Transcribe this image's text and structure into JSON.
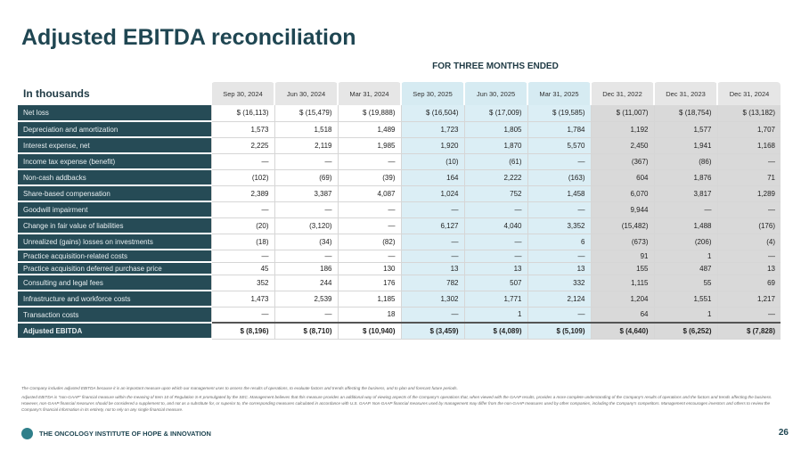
{
  "title": "Adjusted EBITDA reconciliation",
  "period_label": "FOR THREE MONTHS ENDED",
  "units_label": "In thousands",
  "columns": [
    "Sep 30, 2024",
    "Jun 30, 2024",
    "Mar 31, 2024",
    "Sep 30, 2025",
    "Jun 30, 2025",
    "Mar 31, 2025",
    "Dec 31, 2022",
    "Dec 31, 2023",
    "Dec 31, 2024"
  ],
  "rows": [
    {
      "label": "Net loss",
      "values": [
        "$ (16,113)",
        "$ (15,479)",
        "$ (19,888)",
        "$ (16,504)",
        "$ (17,009)",
        "$ (19,585)",
        "$ (11,007)",
        "$ (18,754)",
        "$ (13,182)"
      ]
    },
    {
      "label": "Depreciation and amortization",
      "values": [
        "1,573",
        "1,518",
        "1,489",
        "1,723",
        "1,805",
        "1,784",
        "1,192",
        "1,577",
        "1,707"
      ]
    },
    {
      "label": "Interest expense, net",
      "values": [
        "2,225",
        "2,119",
        "1,985",
        "1,920",
        "1,870",
        "5,570",
        "2,450",
        "1,941",
        "1,168"
      ]
    },
    {
      "label": "Income tax expense (benefit)",
      "values": [
        "—",
        "—",
        "—",
        "(10)",
        "(61)",
        "—",
        "(367)",
        "(86)",
        "—"
      ]
    },
    {
      "label": "Non-cash addbacks",
      "values": [
        "(102)",
        "(69)",
        "(39)",
        "164",
        "2,222",
        "(163)",
        "604",
        "1,876",
        "71"
      ]
    },
    {
      "label": "Share-based compensation",
      "values": [
        "2,389",
        "3,387",
        "4,087",
        "1,024",
        "752",
        "1,458",
        "6,070",
        "3,817",
        "1,289"
      ]
    },
    {
      "label": "Goodwill impairment",
      "values": [
        "—",
        "—",
        "—",
        "—",
        "—",
        "—",
        "9,944",
        "—",
        "—"
      ]
    },
    {
      "label": "Change in fair value of liabilities",
      "values": [
        "(20)",
        "(3,120)",
        "—",
        "6,127",
        "4,040",
        "3,352",
        "(15,482)",
        "1,488",
        "(176)"
      ]
    },
    {
      "label": "Unrealized (gains) losses on investments",
      "values": [
        "(18)",
        "(34)",
        "(82)",
        "—",
        "—",
        "6",
        "(673)",
        "(206)",
        "(4)"
      ]
    },
    {
      "label": "Practice acquisition-related costs",
      "values": [
        "—",
        "—",
        "—",
        "—",
        "—",
        "—",
        "91",
        "1",
        "—"
      ]
    },
    {
      "label": "Practice acquisition deferred purchase price",
      "values": [
        "45",
        "186",
        "130",
        "13",
        "13",
        "13",
        "155",
        "487",
        "13"
      ]
    },
    {
      "label": "Consulting and legal fees",
      "values": [
        "352",
        "244",
        "176",
        "782",
        "507",
        "332",
        "1,115",
        "55",
        "69"
      ]
    },
    {
      "label": "Infrastructure and workforce costs",
      "values": [
        "1,473",
        "2,539",
        "1,185",
        "1,302",
        "1,771",
        "2,124",
        "1,204",
        "1,551",
        "1,217"
      ]
    },
    {
      "label": "Transaction costs",
      "values": [
        "—",
        "—",
        "18",
        "—",
        "1",
        "—",
        "64",
        "1",
        "—"
      ]
    },
    {
      "label": "Adjusted EBITDA",
      "values": [
        "$ (8,196)",
        "$ (8,710)",
        "$ (10,940)",
        "$ (3,459)",
        "$ (4,089)",
        "$ (5,109)",
        "$ (4,640)",
        "$ (6,252)",
        "$ (7,828)"
      ]
    }
  ],
  "notes": [
    "The Company includes adjusted EBITDA because it is an important measure upon which our management uses to assess the results of operations, to evaluate factors and trends affecting the business, and to plan and forecast future periods.",
    "Adjusted EBITDA is \"non-GAAP\" financial measure within the meaning of Item 10 of Regulation S-K promulgated by the SEC. Management believes that this measure provides an additional way of viewing aspects of the Company's operations that, when viewed with the GAAP results, provides a more complete understanding of the Company's results of operations and the factors and trends affecting the business. However, non-GAAP financial measures should be considered a supplement to, and not as a substitute for, or superior to, the corresponding measures calculated in accordance with U.S. GAAP. Non-GAAP financial measures used by management may differ from the non-GAAP measures used by other companies, including the Company's competitors. Management encourages investors and others to review the Company's financial information in its entirety, not to rely on any single financial measure."
  ],
  "footer": {
    "org": "THE ONCOLOGY INSTITUTE OF HOPE & INNOVATION",
    "page": "26"
  }
}
